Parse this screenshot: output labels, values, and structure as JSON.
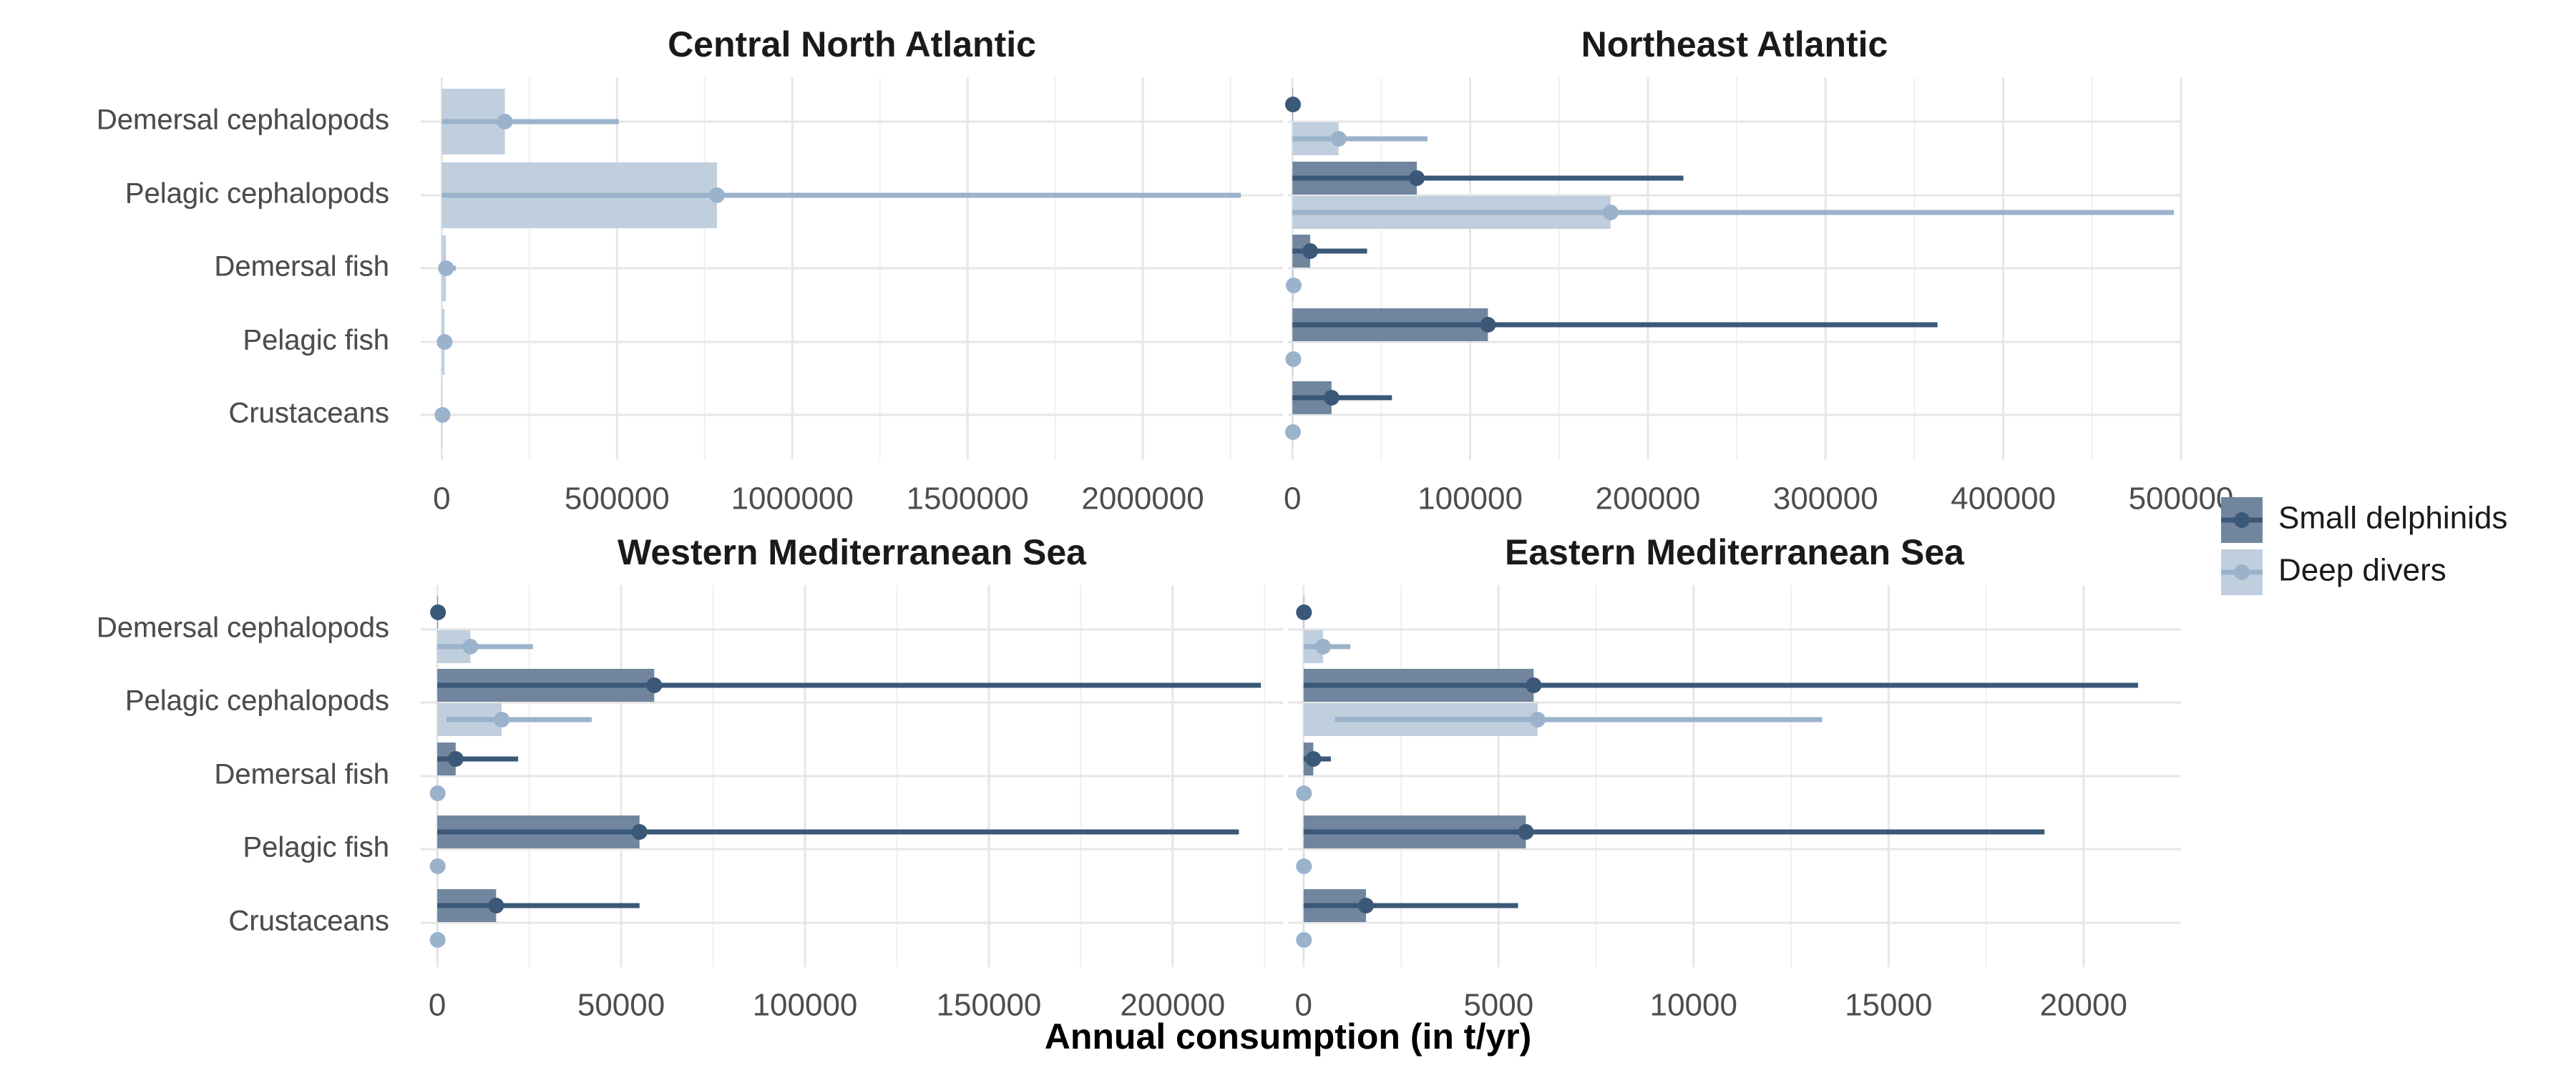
{
  "chart_data": {
    "type": "bar",
    "xlabel": "Annual consumption (in t/yr)",
    "categories": [
      "Demersal cephalopods",
      "Pelagic cephalopods",
      "Demersal fish",
      "Pelagic fish",
      "Crustaceans"
    ],
    "legend": {
      "position": "right",
      "items": [
        {
          "name": "Small delphinids",
          "color": "#3b5878",
          "bar_color": "#71869e"
        },
        {
          "name": "Deep divers",
          "color": "#9bb2cb",
          "bar_color": "#c0cfde"
        }
      ]
    },
    "grid": true,
    "panels": [
      {
        "title": "Central North Atlantic",
        "xlim": [
          -60000,
          2400000
        ],
        "ticks": [
          0,
          500000,
          1000000,
          1500000,
          2000000
        ],
        "tick_labels": [
          "0",
          "500000",
          "1000000",
          "1500000",
          "2000000"
        ],
        "series": [
          {
            "name": "Deep divers",
            "values": [
              180000,
              785000,
              12000,
              8000,
              2000
            ],
            "lower": [
              0,
              0,
              0,
              0,
              0
            ],
            "upper": [
              505000,
              2280000,
              40000,
              20000,
              5000
            ]
          }
        ]
      },
      {
        "title": "Northeast Atlantic",
        "xlim": [
          -2500,
          500000
        ],
        "ticks": [
          0,
          100000,
          200000,
          300000,
          400000,
          500000
        ],
        "tick_labels": [
          "0",
          "100000",
          "200000",
          "300000",
          "400000",
          "500000"
        ],
        "series": [
          {
            "name": "Small delphinids",
            "values": [
              300,
              70000,
              10000,
              110000,
              22000
            ],
            "lower": [
              0,
              0,
              0,
              0,
              0
            ],
            "upper": [
              300,
              220000,
              42000,
              363000,
              56000
            ]
          },
          {
            "name": "Deep divers",
            "values": [
              26000,
              179000,
              700,
              500,
              300
            ],
            "lower": [
              0,
              0,
              0,
              0,
              0
            ],
            "upper": [
              76000,
              496000,
              700,
              500,
              300
            ]
          }
        ]
      },
      {
        "title": "Western Mediterranean Sea",
        "xlim": [
          -4500,
          230000
        ],
        "ticks": [
          0,
          50000,
          100000,
          150000,
          200000
        ],
        "tick_labels": [
          "0",
          "50000",
          "100000",
          "150000",
          "200000"
        ],
        "series": [
          {
            "name": "Small delphinids",
            "values": [
              200,
              59000,
              5000,
              55000,
              16000
            ],
            "lower": [
              0,
              0,
              0,
              0,
              0
            ],
            "upper": [
              200,
              224000,
              22000,
              218000,
              55000
            ]
          },
          {
            "name": "Deep divers",
            "values": [
              9000,
              17500,
              100,
              100,
              100
            ],
            "lower": [
              0,
              2500,
              0,
              0,
              0
            ],
            "upper": [
              26000,
              42000,
              100,
              100,
              100
            ]
          }
        ]
      },
      {
        "title": "Eastern Mediterranean Sea",
        "xlim": [
          -400,
          22500
        ],
        "ticks": [
          0,
          5000,
          10000,
          15000,
          20000
        ],
        "tick_labels": [
          "0",
          "5000",
          "10000",
          "15000",
          "20000"
        ],
        "series": [
          {
            "name": "Small delphinids",
            "values": [
              10,
              5900,
              250,
              5700,
              1600
            ],
            "lower": [
              0,
              0,
              0,
              0,
              0
            ],
            "upper": [
              10,
              21400,
              700,
              19000,
              5500
            ]
          },
          {
            "name": "Deep divers",
            "values": [
              500,
              6000,
              10,
              10,
              10
            ],
            "lower": [
              0,
              800,
              0,
              0,
              0
            ],
            "upper": [
              1200,
              13300,
              10,
              10,
              10
            ]
          }
        ]
      }
    ]
  }
}
